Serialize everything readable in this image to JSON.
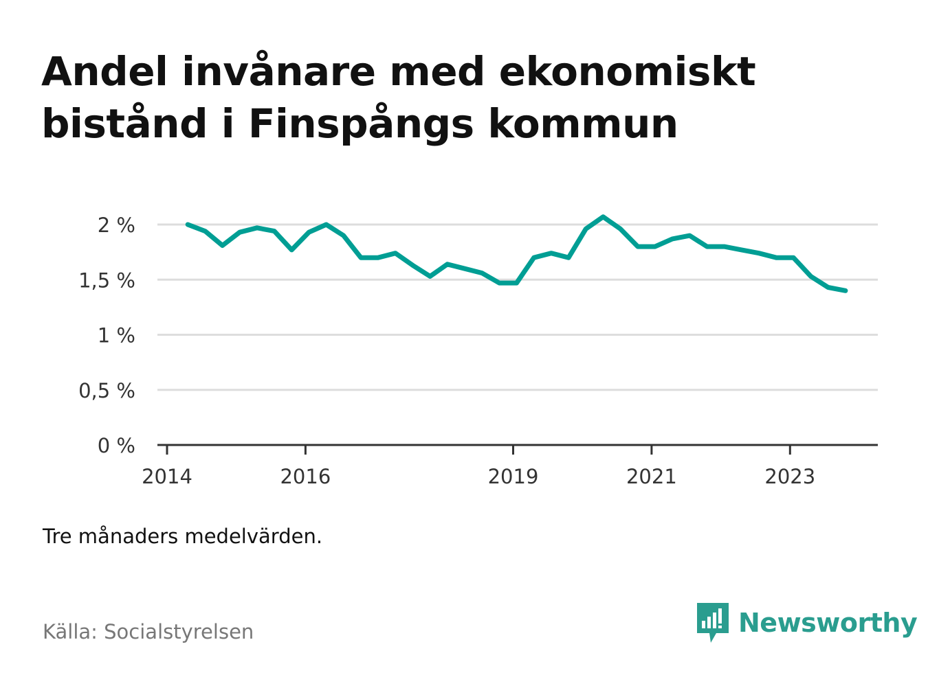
{
  "title": "Andel invånare med ekonomiskt bistånd i Finspångs kommun",
  "note": "Tre månaders medelvärden.",
  "source": "Källa: Socialstyrelsen",
  "brand": {
    "name": "Newsworthy",
    "icon": "newsworthy-logo-icon"
  },
  "colors": {
    "line": "#009e94",
    "grid": "#dddddd",
    "axis": "#333333",
    "brand": "#2a9d8f"
  },
  "chart_data": {
    "type": "line",
    "title": "Andel invånare med ekonomiskt bistånd i Finspångs kommun",
    "xlabel": "",
    "ylabel": "",
    "ylim": [
      0,
      2
    ],
    "yticks": [
      {
        "value": 0,
        "label": "0 %"
      },
      {
        "value": 0.5,
        "label": "0,5 %"
      },
      {
        "value": 1,
        "label": "1 %"
      },
      {
        "value": 1.5,
        "label": "1,5 %"
      },
      {
        "value": 2,
        "label": "2 %"
      }
    ],
    "xlim": [
      2014,
      2024.5
    ],
    "xticks": [
      {
        "value": 2014,
        "label": "2014"
      },
      {
        "value": 2016,
        "label": "2016"
      },
      {
        "value": 2019,
        "label": "2019"
      },
      {
        "value": 2021,
        "label": "2021"
      },
      {
        "value": 2023,
        "label": "2023"
      }
    ],
    "grid": true,
    "series": [
      {
        "x": [
          2014.3,
          2014.55,
          2014.8,
          2015.05,
          2015.3,
          2015.55,
          2015.8,
          2016.05,
          2016.3,
          2016.55,
          2016.8,
          2017.05,
          2017.3,
          2017.55,
          2017.8,
          2018.05,
          2018.3,
          2018.55,
          2018.8,
          2019.05,
          2019.3,
          2019.55,
          2019.8,
          2020.05,
          2020.3,
          2020.55,
          2020.8,
          2021.05,
          2021.3,
          2021.55,
          2021.8,
          2022.05,
          2022.3,
          2022.55,
          2022.8,
          2023.05,
          2023.3,
          2023.55,
          2023.8
        ],
        "y": [
          2.0,
          1.94,
          1.81,
          1.93,
          1.97,
          1.94,
          1.77,
          1.93,
          2.0,
          1.9,
          1.7,
          1.7,
          1.74,
          1.63,
          1.53,
          1.64,
          1.6,
          1.56,
          1.47,
          1.47,
          1.7,
          1.74,
          1.7,
          1.96,
          2.07,
          1.96,
          1.8,
          1.8,
          1.87,
          1.9,
          1.8,
          1.8,
          1.77,
          1.74,
          1.7,
          1.7,
          1.53,
          1.43,
          1.4
        ]
      }
    ]
  }
}
